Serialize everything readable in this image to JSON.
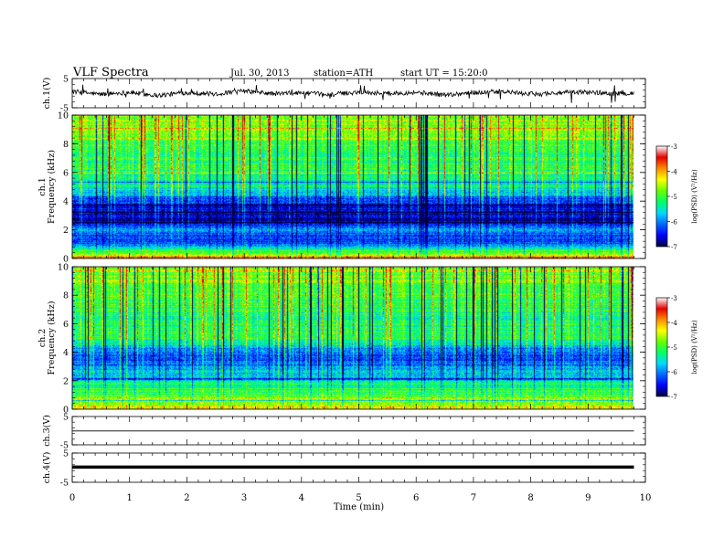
{
  "header": {
    "title": "VLF Spectra",
    "date": "Jul. 30, 2013",
    "station": "station=ATH",
    "start": "start UT = 15:20:0"
  },
  "colors": {
    "background": "#ffffff",
    "trace": "#000000",
    "colormap": [
      "#00003a",
      "#0000ff",
      "#0066ff",
      "#00d8ff",
      "#00ff66",
      "#66ff00",
      "#ffff00",
      "#ff8c00",
      "#e60000",
      "#ffffff"
    ]
  },
  "chart_data": [
    {
      "type": "line",
      "ylabel": "ch.1(V)",
      "ylim": [
        -5,
        5
      ],
      "yticks": [
        "5",
        "-5"
      ],
      "xlim": [
        0,
        10
      ],
      "x": [
        0,
        0.5,
        1,
        1.5,
        2,
        2.5,
        3,
        3.5,
        4,
        4.5,
        5,
        5.5,
        6,
        6.5,
        7,
        7.5,
        8,
        8.5,
        9,
        9.5,
        9.8
      ],
      "values": [
        0.6,
        -0.4,
        0.3,
        -0.8,
        0.2,
        -0.3,
        0.7,
        -0.2,
        0.1,
        -0.5,
        0.4,
        -0.1,
        0.3,
        -0.6,
        0.2,
        0.5,
        -0.3,
        0.1,
        0.4,
        -0.2,
        0.0
      ]
    },
    {
      "type": "heatmap",
      "ylabel_channel": "ch.1",
      "ylabel": "Frequency (kHz)",
      "ylim": [
        0,
        10
      ],
      "yticks": [
        "0",
        "2",
        "4",
        "6",
        "8",
        "10"
      ],
      "xlim": [
        0,
        10
      ],
      "time_end_min": 9.8,
      "colorbar": {
        "label": "log(PSD) (V²/Hz)",
        "range": [
          -7,
          -3
        ],
        "ticks": [
          "-3",
          "-4",
          "-5",
          "-6",
          "-7"
        ]
      },
      "profile_freq_khz": [
        0,
        0.5,
        1,
        1.5,
        2,
        2.5,
        3,
        3.5,
        4,
        4.5,
        5,
        6,
        7,
        8,
        9,
        10
      ],
      "profile_log_psd": [
        -3.6,
        -4.8,
        -6.2,
        -6.3,
        -5.6,
        -6.8,
        -6.6,
        -6.5,
        -6.3,
        -5.5,
        -5.2,
        -5.0,
        -4.9,
        -4.7,
        -4.5,
        -4.4
      ]
    },
    {
      "type": "heatmap",
      "ylabel_channel": "ch.2",
      "ylabel": "Frequency (kHz)",
      "ylim": [
        0,
        10
      ],
      "yticks": [
        "0",
        "2",
        "4",
        "6",
        "8",
        "10"
      ],
      "xlim": [
        0,
        10
      ],
      "time_end_min": 9.8,
      "colorbar": {
        "label": "log(PSD) (V²/Hz)",
        "range": [
          -7,
          -3
        ],
        "ticks": [
          "-3",
          "-4",
          "-5",
          "-6",
          "-7"
        ]
      },
      "profile_freq_khz": [
        0,
        0.5,
        1,
        1.5,
        2,
        2.5,
        3,
        3.5,
        4,
        4.5,
        5,
        6,
        7,
        8,
        9,
        10
      ],
      "profile_log_psd": [
        -3.8,
        -4.5,
        -4.7,
        -5.0,
        -5.3,
        -5.6,
        -5.9,
        -6.2,
        -6.0,
        -5.4,
        -4.9,
        -5.0,
        -4.9,
        -4.7,
        -4.5,
        -4.4
      ]
    },
    {
      "type": "line",
      "ylabel": "ch.3(V)",
      "ylim": [
        -5,
        5
      ],
      "yticks": [
        "5",
        "-5"
      ],
      "xlim": [
        0,
        10
      ],
      "x": [
        0,
        9.8
      ],
      "values": [
        -0.1,
        -0.1
      ]
    },
    {
      "type": "line",
      "ylabel": "ch.4(V)",
      "ylim": [
        -5,
        5
      ],
      "yticks": [
        "5",
        "-5"
      ],
      "xlim": [
        0,
        10
      ],
      "x": [
        0,
        9.8
      ],
      "values": [
        0.2,
        0.2
      ]
    }
  ],
  "xaxis": {
    "label": "Time (min)",
    "ticks": [
      "0",
      "1",
      "2",
      "3",
      "4",
      "5",
      "6",
      "7",
      "8",
      "9",
      "10"
    ]
  }
}
